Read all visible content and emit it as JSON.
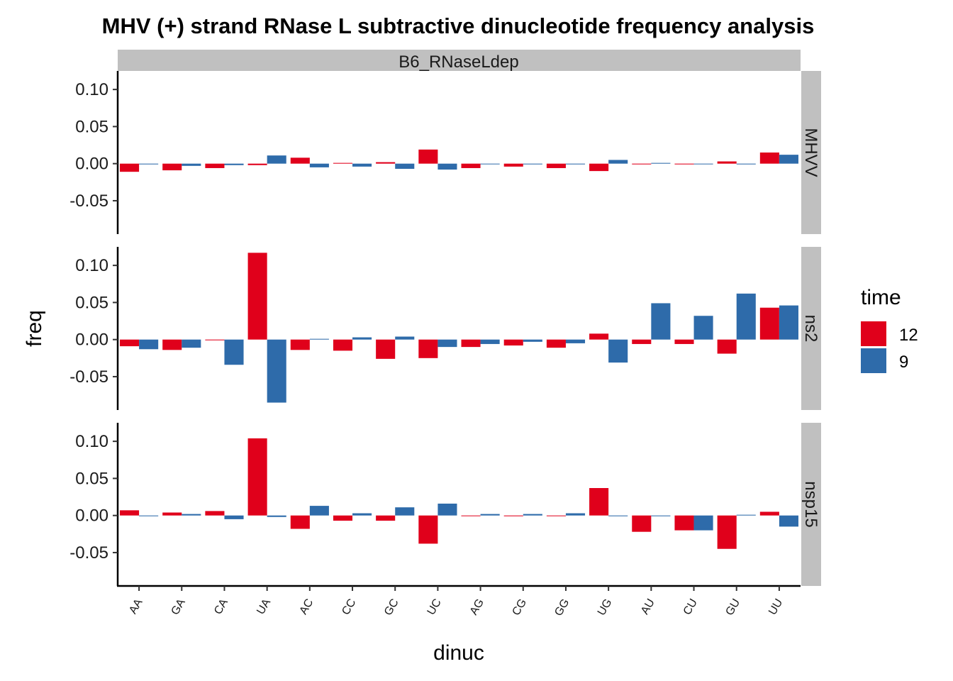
{
  "chart_data": {
    "type": "bar",
    "title": "MHV (+) strand RNase L subtractive dinucleotide frequency analysis",
    "xlabel": "dinuc",
    "ylabel": "freq",
    "column_facet": "B6_RNaseLdep",
    "ylim": [
      -0.095,
      0.125
    ],
    "yticks": [
      "0.10",
      "0.05",
      "0.00",
      "-0.05"
    ],
    "ytick_values": [
      0.1,
      0.05,
      0.0,
      -0.05
    ],
    "categories": [
      "AA",
      "GA",
      "CA",
      "UA",
      "AC",
      "CC",
      "GC",
      "UC",
      "AG",
      "CG",
      "GG",
      "UG",
      "AU",
      "CU",
      "GU",
      "UU"
    ],
    "grid": false,
    "legend": {
      "title": "time",
      "position": "right",
      "entries": [
        {
          "label": "12",
          "color": "#E0001B"
        },
        {
          "label": "9",
          "color": "#2E6BAA"
        }
      ]
    },
    "panels": [
      {
        "row_facet": "MHVV",
        "series": [
          {
            "name": "12",
            "color": "#E0001B",
            "values": [
              -0.011,
              -0.009,
              -0.006,
              -0.002,
              0.008,
              0.001,
              0.002,
              0.019,
              -0.006,
              -0.004,
              -0.006,
              -0.01,
              -0.001,
              -0.001,
              0.003,
              0.015
            ]
          },
          {
            "name": "9",
            "color": "#2E6BAA",
            "values": [
              -0.001,
              -0.003,
              -0.002,
              0.011,
              -0.005,
              -0.004,
              -0.007,
              -0.008,
              0.0,
              -0.001,
              -0.001,
              0.005,
              0.001,
              0.0,
              -0.001,
              0.012
            ]
          }
        ]
      },
      {
        "row_facet": "ns2",
        "series": [
          {
            "name": "12",
            "color": "#E0001B",
            "values": [
              -0.009,
              -0.014,
              -0.001,
              0.117,
              -0.014,
              -0.015,
              -0.026,
              -0.025,
              -0.01,
              -0.008,
              -0.011,
              0.008,
              -0.006,
              -0.006,
              -0.019,
              0.043
            ]
          },
          {
            "name": "9",
            "color": "#2E6BAA",
            "values": [
              -0.013,
              -0.011,
              -0.034,
              -0.085,
              0.001,
              0.003,
              0.004,
              -0.01,
              -0.006,
              -0.003,
              -0.005,
              -0.031,
              0.049,
              0.032,
              0.062,
              0.046
            ]
          }
        ]
      },
      {
        "row_facet": "nsp15",
        "series": [
          {
            "name": "12",
            "color": "#E0001B",
            "values": [
              0.007,
              0.004,
              0.006,
              0.104,
              -0.018,
              -0.007,
              -0.007,
              -0.038,
              0.0,
              -0.001,
              0.0,
              0.037,
              -0.022,
              -0.02,
              -0.045,
              0.005
            ]
          },
          {
            "name": "9",
            "color": "#2E6BAA",
            "values": [
              -0.001,
              0.002,
              -0.005,
              -0.002,
              0.013,
              0.003,
              0.011,
              0.016,
              0.002,
              0.002,
              0.003,
              -0.001,
              -0.001,
              -0.02,
              0.001,
              -0.015
            ]
          }
        ]
      }
    ]
  }
}
